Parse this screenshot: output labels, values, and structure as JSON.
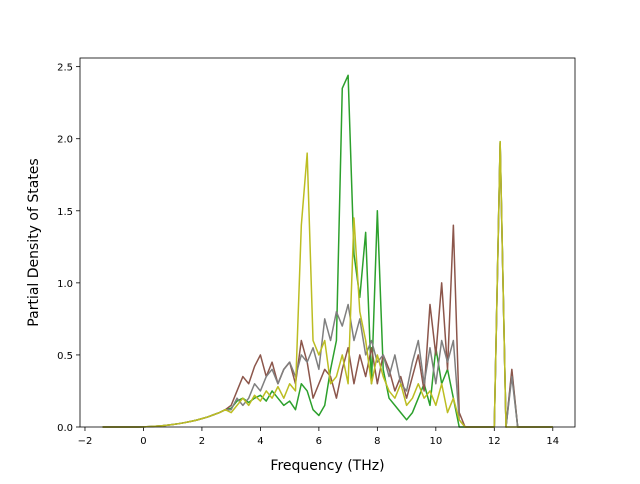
{
  "chart_data": {
    "type": "line",
    "xlabel": "Frequency (THz)",
    "ylabel": "Partial Density of States",
    "x": [
      -1.4,
      -1.2,
      -1.0,
      -0.8,
      -0.6,
      -0.4,
      -0.2,
      0,
      0.2,
      0.4,
      0.6,
      0.8,
      1.0,
      1.2,
      1.4,
      1.6,
      1.8,
      2.0,
      2.2,
      2.4,
      2.6,
      2.8,
      3.0,
      3.2,
      3.4,
      3.6,
      3.8,
      4.0,
      4.2,
      4.4,
      4.6,
      4.8,
      5.0,
      5.2,
      5.4,
      5.6,
      5.8,
      6.0,
      6.2,
      6.4,
      6.6,
      6.8,
      7.0,
      7.2,
      7.4,
      7.6,
      7.8,
      8.0,
      8.2,
      8.4,
      8.6,
      8.8,
      9.0,
      9.2,
      9.4,
      9.6,
      9.8,
      10.0,
      10.2,
      10.4,
      10.6,
      10.8,
      11.0,
      11.2,
      11.4,
      11.6,
      11.8,
      12.0,
      12.2,
      12.4,
      12.6,
      12.8,
      13.0,
      13.2,
      13.4,
      13.6,
      13.8,
      14.0
    ],
    "series": [
      {
        "color": "#2ca02c",
        "values": [
          0,
          0,
          0,
          0,
          0,
          0,
          0,
          0.001,
          0.003,
          0.005,
          0.008,
          0.012,
          0.017,
          0.023,
          0.03,
          0.038,
          0.047,
          0.058,
          0.07,
          0.085,
          0.1,
          0.12,
          0.13,
          0.18,
          0.2,
          0.17,
          0.2,
          0.22,
          0.18,
          0.25,
          0.2,
          0.15,
          0.18,
          0.12,
          0.3,
          0.25,
          0.12,
          0.08,
          0.15,
          0.4,
          0.6,
          2.35,
          2.44,
          1.2,
          0.9,
          1.35,
          0.3,
          1.5,
          0.4,
          0.2,
          0.15,
          0.1,
          0.05,
          0.1,
          0.2,
          0.3,
          0.15,
          0.55,
          0.3,
          0.4,
          0.2,
          0,
          0,
          0,
          0,
          0,
          0,
          0,
          1.98,
          0,
          0.38,
          0,
          0,
          0,
          0,
          0,
          0,
          0
        ]
      },
      {
        "color": "#8c564b",
        "values": [
          0,
          0,
          0,
          0,
          0,
          0,
          0,
          0.001,
          0.003,
          0.005,
          0.008,
          0.012,
          0.017,
          0.023,
          0.03,
          0.038,
          0.047,
          0.058,
          0.07,
          0.085,
          0.1,
          0.12,
          0.15,
          0.25,
          0.35,
          0.3,
          0.42,
          0.5,
          0.35,
          0.45,
          0.3,
          0.4,
          0.45,
          0.3,
          0.6,
          0.45,
          0.2,
          0.3,
          0.4,
          0.35,
          0.2,
          0.4,
          0.55,
          0.3,
          0.5,
          0.35,
          0.55,
          0.3,
          0.5,
          0.4,
          0.25,
          0.35,
          0.2,
          0.35,
          0.5,
          0.25,
          0.85,
          0.5,
          1.0,
          0.4,
          1.4,
          0.1,
          0,
          0,
          0,
          0,
          0,
          0,
          1.97,
          0,
          0.4,
          0,
          0,
          0,
          0,
          0,
          0,
          0
        ]
      },
      {
        "color": "#7f7f7f",
        "values": [
          0,
          0,
          0,
          0,
          0,
          0,
          0,
          0.001,
          0.003,
          0.005,
          0.008,
          0.012,
          0.017,
          0.023,
          0.03,
          0.038,
          0.047,
          0.058,
          0.07,
          0.085,
          0.1,
          0.12,
          0.12,
          0.2,
          0.15,
          0.2,
          0.3,
          0.25,
          0.35,
          0.4,
          0.3,
          0.4,
          0.45,
          0.35,
          0.5,
          0.45,
          0.55,
          0.4,
          0.75,
          0.6,
          0.8,
          0.7,
          0.85,
          0.6,
          0.75,
          0.5,
          0.6,
          0.45,
          0.5,
          0.35,
          0.5,
          0.3,
          0.25,
          0.45,
          0.6,
          0.3,
          0.55,
          0.3,
          0.6,
          0.45,
          0.6,
          0.05,
          0,
          0,
          0,
          0,
          0,
          0,
          1.95,
          0,
          0.35,
          0,
          0,
          0,
          0,
          0,
          0,
          0
        ]
      },
      {
        "color": "#bcbd22",
        "values": [
          0,
          0,
          0,
          0,
          0,
          0,
          0,
          0.001,
          0.003,
          0.005,
          0.008,
          0.012,
          0.017,
          0.023,
          0.03,
          0.038,
          0.047,
          0.058,
          0.07,
          0.085,
          0.1,
          0.12,
          0.1,
          0.15,
          0.2,
          0.15,
          0.22,
          0.18,
          0.25,
          0.2,
          0.28,
          0.2,
          0.3,
          0.25,
          1.4,
          1.9,
          0.6,
          0.5,
          0.6,
          0.3,
          0.35,
          0.5,
          0.3,
          1.45,
          0.8,
          0.6,
          0.3,
          0.5,
          0.35,
          0.25,
          0.2,
          0.3,
          0.15,
          0.2,
          0.3,
          0.2,
          0.25,
          0.15,
          0.3,
          0.1,
          0.2,
          0.05,
          0,
          0,
          0,
          0,
          0,
          0,
          1.98,
          0,
          0,
          0,
          0,
          0,
          0,
          0,
          0,
          0
        ]
      }
    ],
    "xlim": [
      -2.17,
      14.76
    ],
    "ylim": [
      0,
      2.56
    ],
    "xticks": [
      {
        "value": -2,
        "label": "−2"
      },
      0,
      2,
      4,
      6,
      8,
      10,
      12,
      14
    ],
    "yticks": [
      {
        "value": 0,
        "label": "0.0"
      },
      0.5,
      {
        "value": 1,
        "label": "1.0"
      },
      1.5,
      {
        "value": 2,
        "label": "2.0"
      },
      2.5
    ],
    "grid": false
  }
}
